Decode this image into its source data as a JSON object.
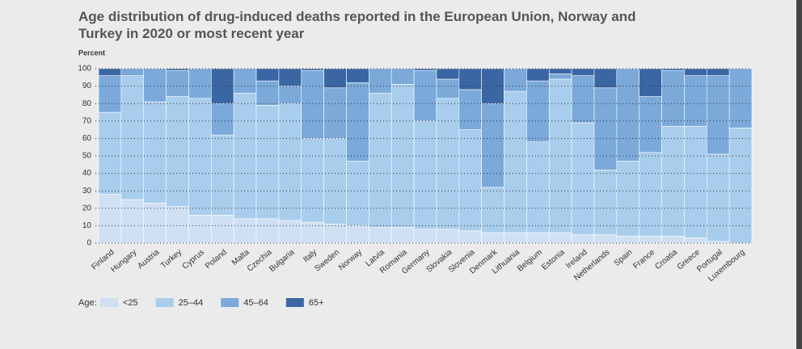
{
  "chart_data": {
    "type": "stacked_bar",
    "title": "Age distribution of drug-induced deaths reported in the European Union, Norway and Turkey in 2020 or most recent year",
    "y_label": "Percent",
    "legend_title": "Age:",
    "categories": [
      "Finland",
      "Hungary",
      "Austria",
      "Turkey",
      "Cyprus",
      "Poland",
      "Malta",
      "Czechia",
      "Bulgaria",
      "Italy",
      "Sweden",
      "Norway",
      "Latvia",
      "Romania",
      "Germany",
      "Slovakia",
      "Slovenia",
      "Denmark",
      "Lithuania",
      "Belgium",
      "Estonia",
      "Ireland",
      "Netherlands",
      "Spain",
      "France",
      "Croatia",
      "Greece",
      "Portugal",
      "Luxembourg"
    ],
    "series": [
      {
        "name": "<25",
        "color": "#cfe0f3",
        "values": [
          28,
          25,
          23,
          21,
          16,
          16,
          14,
          14,
          13,
          12,
          11,
          10,
          9,
          9,
          8,
          8,
          7,
          6,
          6,
          6,
          6,
          5,
          5,
          4,
          4,
          4,
          3,
          1,
          0
        ]
      },
      {
        "name": "25–44",
        "color": "#a9cdec",
        "values": [
          47,
          71,
          58,
          63,
          67,
          46,
          72,
          65,
          67,
          48,
          49,
          37,
          77,
          82,
          62,
          75,
          58,
          26,
          81,
          52,
          88,
          64,
          37,
          43,
          48,
          63,
          64,
          50,
          66
        ]
      },
      {
        "name": "45–64",
        "color": "#7aa9da",
        "values": [
          21,
          4,
          19,
          15,
          17,
          18,
          14,
          14,
          10,
          39,
          29,
          45,
          14,
          9,
          29,
          11,
          23,
          48,
          13,
          35,
          3,
          27,
          47,
          53,
          32,
          32,
          29,
          45,
          34
        ]
      },
      {
        "name": "65+",
        "color": "#3a67a3",
        "values": [
          4,
          0,
          0,
          1,
          0,
          20,
          0,
          7,
          10,
          1,
          11,
          8,
          0,
          0,
          1,
          6,
          12,
          20,
          0,
          7,
          3,
          4,
          11,
          0,
          16,
          1,
          4,
          4,
          0
        ]
      }
    ],
    "ylim": [
      0,
      100
    ],
    "yticks": [
      0,
      10,
      20,
      30,
      40,
      50,
      60,
      70,
      80,
      90,
      100
    ],
    "grid": true
  }
}
